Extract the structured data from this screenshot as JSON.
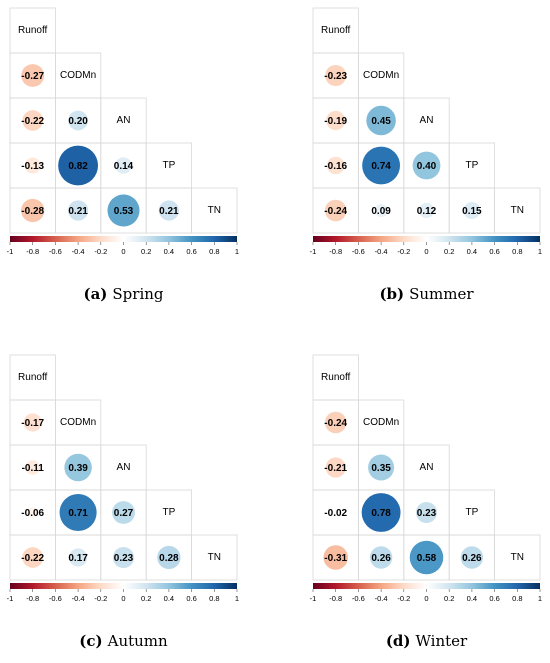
{
  "chart_data": [
    {
      "type": "correlation",
      "caption_label": "(a)",
      "caption": "Spring",
      "variables": [
        "Runoff",
        "CODMn",
        "AN",
        "TP",
        "TN"
      ],
      "values": [
        [
          -0.27
        ],
        [
          -0.22,
          0.2
        ],
        [
          -0.13,
          0.82,
          0.14
        ],
        [
          -0.28,
          0.21,
          0.53,
          0.21
        ]
      ],
      "value_labels": [
        [
          "-0.27"
        ],
        [
          "-0.22",
          "0.20"
        ],
        [
          "-0.13",
          "0.82",
          "0.14"
        ],
        [
          "-0.28",
          "0.21",
          "0.53",
          "0.21"
        ]
      ],
      "colormap": "RdBu",
      "clim": [
        -1,
        1
      ],
      "cticks": [
        -1,
        -0.8,
        -0.6,
        -0.4,
        -0.2,
        0,
        0.2,
        0.4,
        0.6,
        0.8,
        1
      ]
    },
    {
      "type": "correlation",
      "caption_label": "(b)",
      "caption": "Summer",
      "variables": [
        "Runoff",
        "CODMn",
        "AN",
        "TP",
        "TN"
      ],
      "values": [
        [
          -0.23
        ],
        [
          -0.19,
          0.45
        ],
        [
          -0.16,
          0.74,
          0.4
        ],
        [
          -0.24,
          0.09,
          0.12,
          0.15
        ]
      ],
      "value_labels": [
        [
          "-0.23"
        ],
        [
          "-0.19",
          "0.45"
        ],
        [
          "-0.16",
          "0.74",
          "0.40"
        ],
        [
          "-0.24",
          "0.09",
          "0.12",
          "0.15"
        ]
      ],
      "colormap": "RdBu",
      "clim": [
        -1,
        1
      ],
      "cticks": [
        -1,
        -0.8,
        -0.6,
        -0.4,
        -0.2,
        0,
        0.2,
        0.4,
        0.6,
        0.8,
        1
      ]
    },
    {
      "type": "correlation",
      "caption_label": "(c)",
      "caption": "Autumn",
      "variables": [
        "Runoff",
        "CODMn",
        "AN",
        "TP",
        "TN"
      ],
      "values": [
        [
          -0.17
        ],
        [
          -0.11,
          0.39
        ],
        [
          -0.06,
          0.71,
          0.27
        ],
        [
          -0.22,
          0.17,
          0.23,
          0.28
        ]
      ],
      "value_labels": [
        [
          "-0.17"
        ],
        [
          "-0.11",
          "0.39"
        ],
        [
          "-0.06",
          "0.71",
          "0.27"
        ],
        [
          "-0.22",
          "0.17",
          "0.23",
          "0.28"
        ]
      ],
      "colormap": "RdBu",
      "clim": [
        -1,
        1
      ],
      "cticks": [
        -1,
        -0.8,
        -0.6,
        -0.4,
        -0.2,
        0,
        0.2,
        0.4,
        0.6,
        0.8,
        1
      ]
    },
    {
      "type": "correlation",
      "caption_label": "(d)",
      "caption": "Winter",
      "variables": [
        "Runoff",
        "CODMn",
        "AN",
        "TP",
        "TN"
      ],
      "values": [
        [
          -0.24
        ],
        [
          -0.21,
          0.35
        ],
        [
          -0.02,
          0.78,
          0.23
        ],
        [
          -0.31,
          0.26,
          0.58,
          0.26
        ]
      ],
      "value_labels": [
        [
          "-0.24"
        ],
        [
          "-0.21",
          "0.35"
        ],
        [
          "-0.02",
          "0.78",
          "0.23"
        ],
        [
          "-0.31",
          "0.26",
          "0.58",
          "0.26"
        ]
      ],
      "colormap": "RdBu",
      "clim": [
        -1,
        1
      ],
      "cticks": [
        -1,
        -0.8,
        -0.6,
        -0.4,
        -0.2,
        0,
        0.2,
        0.4,
        0.6,
        0.8,
        1
      ]
    }
  ]
}
